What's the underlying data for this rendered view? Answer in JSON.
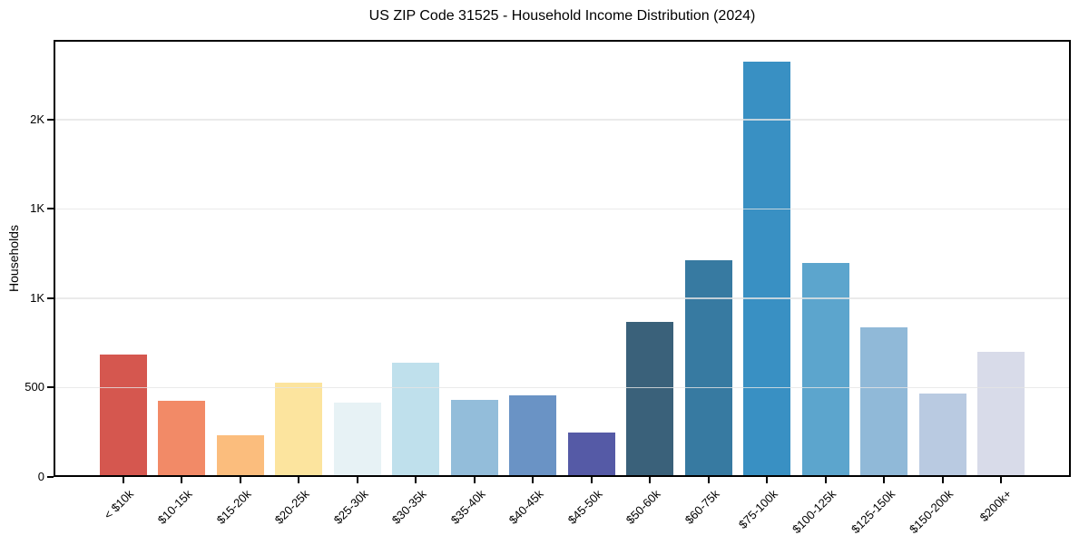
{
  "chart_data": {
    "type": "bar",
    "title": "US ZIP Code 31525 - Household Income Distribution (2024)",
    "xlabel": "",
    "ylabel": "Households",
    "categories": [
      "< $10k",
      "$10-15k",
      "$15-20k",
      "$20-25k",
      "$25-30k",
      "$30-35k",
      "$35-40k",
      "$40-45k",
      "$45-50k",
      "$50-60k",
      "$60-75k",
      "$75-100k",
      "$100-125k",
      "$125-150k",
      "$150-200k",
      "$200k+"
    ],
    "values": [
      685,
      427,
      233,
      528,
      417,
      640,
      431,
      457,
      249,
      868,
      1213,
      2325,
      1198,
      838,
      467,
      700
    ],
    "bar_colors": [
      "#d5574f",
      "#f28a67",
      "#fbbd7d",
      "#fce49e",
      "#e7f2f5",
      "#bfe0ec",
      "#93bdda",
      "#6a93c5",
      "#555aa6",
      "#3a617a",
      "#377aa1",
      "#3990c3",
      "#5ca5cd",
      "#90b9d8",
      "#b9cae1",
      "#d8dbe9"
    ],
    "ylim": [
      0,
      2446
    ],
    "yticks": [
      {
        "value": 0,
        "label": "0"
      },
      {
        "value": 500,
        "label": "500"
      },
      {
        "value": 1000,
        "label": "1K"
      },
      {
        "value": 1500,
        "label": "1K"
      },
      {
        "value": 2000,
        "label": "2K"
      }
    ],
    "x_tick_rotation_deg": 45,
    "grid": "horizontal",
    "legend": "none",
    "grid_color": "#e5e5e5",
    "spine_color": "#000000",
    "background_color": "#ffffff"
  }
}
